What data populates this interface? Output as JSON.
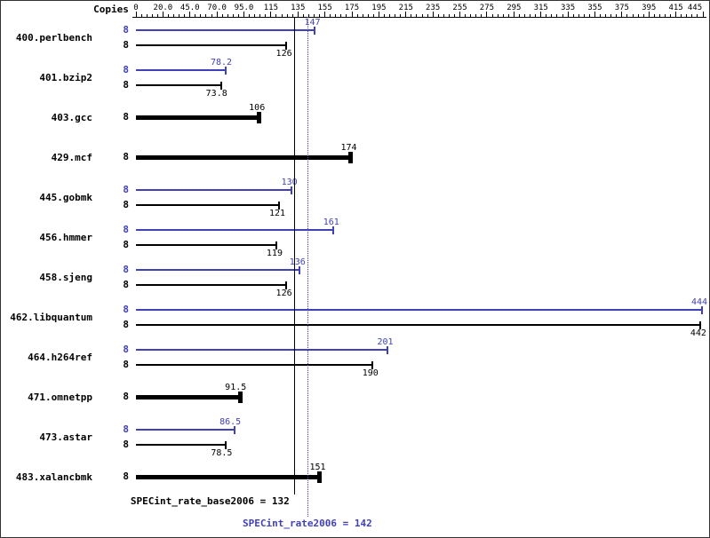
{
  "header": {
    "copies_label": "Copies"
  },
  "colors": {
    "peak": "#4040b8",
    "base": "#000000"
  },
  "chart_data": {
    "type": "bar",
    "orientation": "horizontal",
    "title": "",
    "xlabel": "",
    "ylabel": "Copies",
    "legend_position": "none",
    "grid": false,
    "tick_labels": [
      "0",
      "20.0",
      "45.0",
      "70.0",
      "95.0",
      "115",
      "135",
      "155",
      "175",
      "195",
      "215",
      "235",
      "255",
      "275",
      "295",
      "315",
      "335",
      "355",
      "375",
      "395",
      "415",
      "445"
    ],
    "tick_values": [
      0,
      20,
      45,
      70,
      95,
      115,
      135,
      155,
      175,
      195,
      215,
      235,
      255,
      275,
      295,
      315,
      335,
      355,
      375,
      395,
      415,
      445
    ],
    "xlim": [
      0,
      445
    ],
    "benchmarks": [
      {
        "name": "400.perlbench",
        "peak": {
          "copies": 8,
          "value": 147,
          "label": "147"
        },
        "base": {
          "copies": 8,
          "value": 126,
          "label": "126"
        }
      },
      {
        "name": "401.bzip2",
        "peak": {
          "copies": 8,
          "value": 78.2,
          "label": "78.2"
        },
        "base": {
          "copies": 8,
          "value": 73.8,
          "label": "73.8"
        }
      },
      {
        "name": "403.gcc",
        "peak": null,
        "base": {
          "copies": 8,
          "value": 106,
          "label": "106"
        }
      },
      {
        "name": "429.mcf",
        "peak": null,
        "base": {
          "copies": 8,
          "value": 174,
          "label": "174"
        }
      },
      {
        "name": "445.gobmk",
        "peak": {
          "copies": 8,
          "value": 130,
          "label": "130"
        },
        "base": {
          "copies": 8,
          "value": 121,
          "label": "121"
        }
      },
      {
        "name": "456.hmmer",
        "peak": {
          "copies": 8,
          "value": 161,
          "label": "161"
        },
        "base": {
          "copies": 8,
          "value": 119,
          "label": "119"
        }
      },
      {
        "name": "458.sjeng",
        "peak": {
          "copies": 8,
          "value": 136,
          "label": "136"
        },
        "base": {
          "copies": 8,
          "value": 126,
          "label": "126"
        }
      },
      {
        "name": "462.libquantum",
        "peak": {
          "copies": 8,
          "value": 444,
          "label": "444"
        },
        "base": {
          "copies": 8,
          "value": 442,
          "label": "442"
        }
      },
      {
        "name": "464.h264ref",
        "peak": {
          "copies": 8,
          "value": 201,
          "label": "201"
        },
        "base": {
          "copies": 8,
          "value": 190,
          "label": "190"
        }
      },
      {
        "name": "471.omnetpp",
        "peak": null,
        "base": {
          "copies": 8,
          "value": 91.5,
          "label": "91.5"
        }
      },
      {
        "name": "473.astar",
        "peak": {
          "copies": 8,
          "value": 86.5,
          "label": "86.5"
        },
        "base": {
          "copies": 8,
          "value": 78.5,
          "label": "78.5"
        }
      },
      {
        "name": "483.xalancbmk",
        "peak": null,
        "base": {
          "copies": 8,
          "value": 151,
          "label": "151"
        }
      }
    ],
    "summary": {
      "base": {
        "label": "SPECint_rate_base2006 = 132",
        "value": 132
      },
      "peak": {
        "label": "SPECint_rate2006 = 142",
        "value": 142
      }
    }
  }
}
